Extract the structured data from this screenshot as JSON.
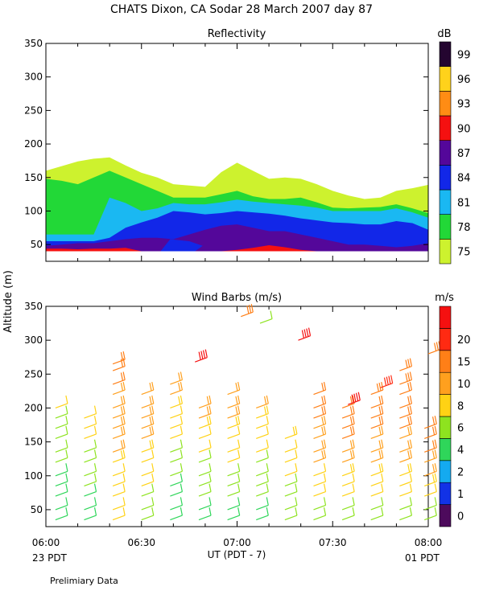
{
  "figure": {
    "title": "CHATS Dixon, CA   Sodar   28 March 2007   day   87",
    "ylabel": "Altitude  (m)",
    "xlabel": "UT  (PDT - 7)",
    "left_date": "23 PDT",
    "right_date": "01 PDT",
    "footer": "Prelimiary Data"
  },
  "chart_data": [
    {
      "type": "area",
      "title": "Reflectivity",
      "colorbar_title": "dB",
      "x_ticks": [
        "06:00",
        "06:30",
        "07:00",
        "07:30",
        "08:00"
      ],
      "x_range_hours": [
        6.0,
        8.0
      ],
      "ylim": [
        25,
        350
      ],
      "y_ticks": [
        50,
        100,
        150,
        200,
        250,
        300,
        350
      ],
      "colorbar": {
        "levels": [
          75,
          78,
          81,
          84,
          87,
          90,
          93,
          96,
          99
        ],
        "colors": [
          "#cdf22e",
          "#22d837",
          "#1ab8f2",
          "#1227e8",
          "#54079a",
          "#f51010",
          "#ff8c14",
          "#ffd21b",
          "#240530"
        ]
      },
      "x": [
        6.0,
        6.083,
        6.167,
        6.25,
        6.333,
        6.417,
        6.5,
        6.583,
        6.667,
        6.75,
        6.833,
        6.917,
        7.0,
        7.083,
        7.167,
        7.25,
        7.333,
        7.417,
        7.5,
        7.583,
        7.667,
        7.75,
        7.833,
        7.917,
        8.0
      ],
      "series": [
        {
          "level": 75,
          "values": [
            160,
            167,
            174,
            178,
            180,
            168,
            157,
            150,
            140,
            138,
            136,
            158,
            172,
            160,
            148,
            150,
            148,
            140,
            130,
            123,
            118,
            120,
            130,
            134,
            139
          ]
        },
        {
          "level": 78,
          "values": [
            148,
            145,
            140,
            150,
            160,
            150,
            140,
            130,
            120,
            120,
            120,
            125,
            130,
            122,
            118,
            118,
            120,
            113,
            105,
            104,
            105,
            106,
            110,
            104,
            97
          ]
        },
        {
          "level": 81,
          "values": [
            65,
            65,
            65,
            65,
            120,
            112,
            100,
            104,
            112,
            110,
            110,
            113,
            117,
            114,
            112,
            110,
            108,
            105,
            100,
            100,
            100,
            100,
            104,
            98,
            90
          ]
        },
        {
          "level": 84,
          "values": [
            55,
            55,
            55,
            55,
            60,
            75,
            83,
            90,
            100,
            98,
            95,
            97,
            100,
            98,
            96,
            93,
            89,
            86,
            83,
            82,
            80,
            80,
            85,
            82,
            72
          ]
        },
        {
          "level": 87,
          "values": [
            48,
            50,
            52,
            52,
            55,
            58,
            60,
            60,
            58,
            65,
            72,
            78,
            80,
            75,
            70,
            70,
            65,
            60,
            55,
            50,
            50,
            48,
            46,
            48,
            52
          ]
        },
        {
          "level": 90,
          "values": [
            44,
            44,
            43,
            44,
            44,
            45,
            40,
            40,
            40,
            40,
            40,
            40,
            42,
            45,
            49,
            46,
            42,
            40,
            40,
            40,
            40,
            40,
            40,
            40,
            40
          ]
        }
      ],
      "blue_patch": {
        "x": [
          6.6,
          6.65,
          6.75,
          6.82,
          6.78,
          6.6
        ],
        "y": [
          40,
          58,
          55,
          48,
          40,
          40
        ]
      }
    },
    {
      "type": "scatter",
      "title": "Wind Barbs (m/s)",
      "colorbar_title": "m/s",
      "x_ticks": [
        "06:00",
        "06:30",
        "07:00",
        "07:30",
        "08:00"
      ],
      "ylim": [
        25,
        350
      ],
      "y_ticks": [
        50,
        100,
        150,
        200,
        250,
        300,
        350
      ],
      "colorbar": {
        "levels": [
          0,
          1,
          2,
          4,
          6,
          8,
          10,
          15,
          20
        ],
        "colors": [
          "#4d0a5c",
          "#1232e6",
          "#14aaf0",
          "#2fd65a",
          "#8ee31f",
          "#ffd214",
          "#ffa01e",
          "#ff7f17",
          "#ff2a12",
          "#f51010"
        ]
      },
      "barb_heights": [
        35,
        50,
        70,
        85,
        100,
        120,
        135,
        155,
        170,
        185,
        200,
        220,
        235,
        255,
        265
      ],
      "profiles": [
        {
          "t": 6.05,
          "top": 200,
          "spd_low": 2,
          "spd_high": 6
        },
        {
          "t": 6.2,
          "top": 185,
          "spd_low": 3,
          "spd_high": 7
        },
        {
          "t": 6.35,
          "top": 270,
          "spd_low": 6,
          "spd_high": 11
        },
        {
          "t": 6.5,
          "top": 230,
          "spd_low": 5,
          "spd_high": 10
        },
        {
          "t": 6.65,
          "top": 235,
          "spd_low": 2,
          "spd_high": 9
        },
        {
          "t": 6.8,
          "top": 210,
          "spd_low": 3,
          "spd_high": 9
        },
        {
          "t": 6.95,
          "top": 225,
          "spd_low": 3,
          "spd_high": 10
        },
        {
          "t": 7.1,
          "top": 200,
          "spd_low": 3,
          "spd_high": 8
        },
        {
          "t": 7.25,
          "top": 165,
          "spd_low": 4,
          "spd_high": 8
        },
        {
          "t": 7.4,
          "top": 230,
          "spd_low": 5,
          "spd_high": 12
        },
        {
          "t": 7.55,
          "top": 200,
          "spd_low": 5,
          "spd_high": 12
        },
        {
          "t": 7.7,
          "top": 230,
          "spd_low": 5,
          "spd_high": 13
        },
        {
          "t": 7.85,
          "top": 260,
          "spd_low": 5,
          "spd_high": 14
        },
        {
          "t": 7.98,
          "top": 175,
          "spd_low": 5,
          "spd_high": 12
        }
      ],
      "isolated_barbs": [
        {
          "t": 6.78,
          "z": 268,
          "spd": 20
        },
        {
          "t": 7.02,
          "z": 335,
          "spd": 14
        },
        {
          "t": 7.12,
          "z": 325,
          "spd": 4
        },
        {
          "t": 7.32,
          "z": 300,
          "spd": 20
        },
        {
          "t": 7.58,
          "z": 205,
          "spd": 20
        },
        {
          "t": 7.75,
          "z": 230,
          "spd": 18
        },
        {
          "t": 8.0,
          "z": 280,
          "spd": 14
        }
      ]
    }
  ]
}
